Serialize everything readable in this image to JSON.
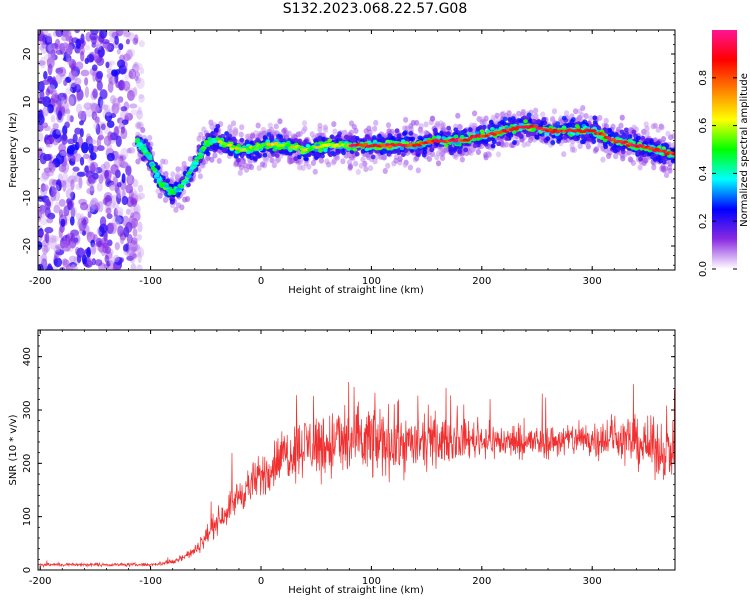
{
  "title": "S132.2023.068.22.57.G08",
  "chart_data": [
    {
      "type": "heatmap",
      "xlabel": "Height of straight line (km)",
      "ylabel": "Frequency (Hz)",
      "xlim": [
        -202,
        375
      ],
      "ylim": [
        -25,
        25
      ],
      "x_ticks": [
        -200,
        -100,
        0,
        100,
        200,
        300
      ],
      "y_ticks": [
        -20,
        -10,
        0,
        10,
        20
      ],
      "colorbar": {
        "label": "Normalized spectral amplitude",
        "range": [
          0,
          1
        ],
        "ticks": [
          0.0,
          0.2,
          0.4,
          0.6,
          0.8
        ],
        "tick_labels": [
          "0.0",
          "0.2",
          "0.4",
          "0.6",
          "0.8"
        ],
        "colormap": [
          "#ffffff",
          "#8a2be2",
          "#0000ff",
          "#00ffff",
          "#00ff00",
          "#ffff00",
          "#ff8000",
          "#ff0000",
          "#ff1493"
        ]
      },
      "ridge": {
        "x": [
          -112,
          -105,
          -100,
          -95,
          -90,
          -85,
          -80,
          -75,
          -70,
          -65,
          -60,
          -55,
          -50,
          -45,
          -40,
          -30,
          -20,
          -10,
          0,
          20,
          40,
          60,
          80,
          100,
          120,
          140,
          160,
          180,
          200,
          220,
          240,
          260,
          280,
          300,
          320,
          340,
          360,
          375
        ],
        "y": [
          2,
          0,
          -2,
          -5,
          -7,
          -8,
          -9,
          -8,
          -7,
          -5,
          -3,
          -1,
          1,
          2,
          2,
          1,
          0,
          0,
          1,
          1,
          0,
          1,
          1,
          1,
          1,
          1,
          2,
          2,
          3,
          4,
          5,
          4,
          4,
          4,
          2,
          1,
          0,
          -1
        ]
      },
      "noise_region": {
        "x_range": [
          -202,
          -105
        ],
        "y_range": [
          -25,
          25
        ]
      }
    },
    {
      "type": "line",
      "xlabel": "Height of straight line (km)",
      "ylabel": "SNR (10 * v/v)",
      "xlim": [
        -202,
        375
      ],
      "ylim": [
        0,
        450
      ],
      "x_ticks": [
        -200,
        -100,
        0,
        100,
        200,
        300
      ],
      "y_ticks": [
        0,
        100,
        200,
        300,
        400
      ],
      "color": "#f03030",
      "series": [
        {
          "x": [
            -202,
            -150,
            -100,
            -80,
            -60,
            -40,
            -20,
            0,
            20,
            40,
            60,
            80,
            100,
            120,
            140,
            160,
            180,
            200,
            220,
            240,
            260,
            280,
            300,
            320,
            340,
            360,
            375
          ],
          "values": [
            10,
            10,
            10,
            15,
            35,
            90,
            140,
            175,
            215,
            235,
            235,
            240,
            240,
            240,
            235,
            240,
            245,
            245,
            240,
            240,
            240,
            245,
            245,
            250,
            240,
            225,
            225
          ],
          "spread": [
            6,
            6,
            6,
            10,
            20,
            45,
            60,
            80,
            95,
            110,
            130,
            140,
            140,
            120,
            95,
            80,
            70,
            65,
            60,
            60,
            60,
            60,
            70,
            80,
            90,
            100,
            100
          ]
        }
      ]
    }
  ]
}
